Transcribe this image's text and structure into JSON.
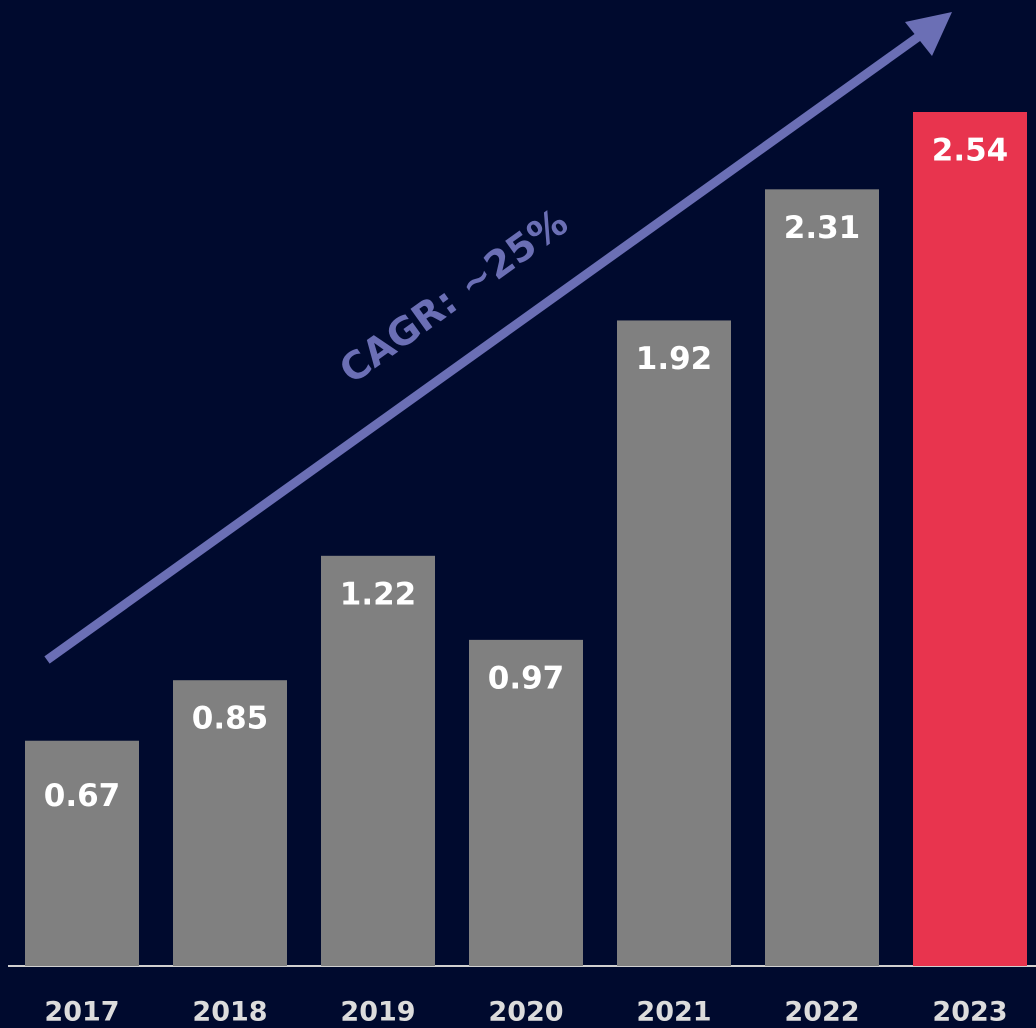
{
  "chart_data": {
    "type": "bar",
    "categories": [
      "2017",
      "2018",
      "2019",
      "2020",
      "2021",
      "2022",
      "2023"
    ],
    "values": [
      0.67,
      0.85,
      1.22,
      0.97,
      1.92,
      2.31,
      2.54
    ],
    "colors": [
      "#808080",
      "#808080",
      "#808080",
      "#808080",
      "#808080",
      "#808080",
      "#e8344e"
    ],
    "annotation": "CAGR: ~25%"
  }
}
